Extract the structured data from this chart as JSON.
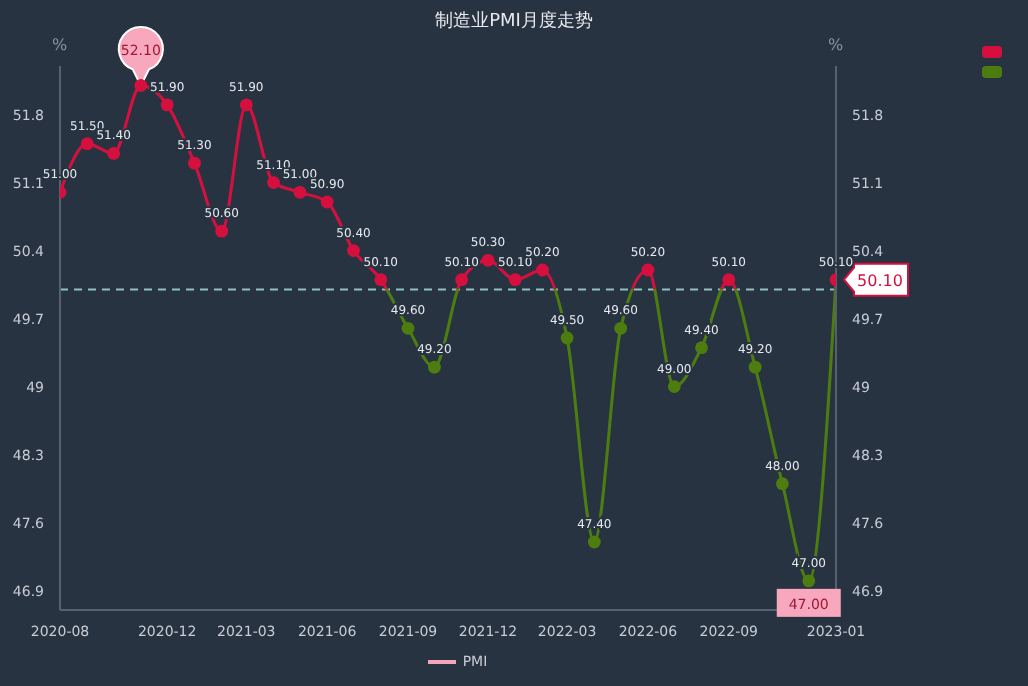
{
  "chart_data": {
    "type": "line",
    "title": "制造业PMI月度走势",
    "ylabel": "%",
    "y2label": "%",
    "x": [
      "2020-08",
      "2020-09",
      "2020-10",
      "2020-11",
      "2020-12",
      "2021-01",
      "2021-02",
      "2021-03",
      "2021-04",
      "2021-05",
      "2021-06",
      "2021-07",
      "2021-08",
      "2021-09",
      "2021-10",
      "2021-11",
      "2021-12",
      "2022-01",
      "2022-02",
      "2022-03",
      "2022-04",
      "2022-05",
      "2022-06",
      "2022-07",
      "2022-08",
      "2022-09",
      "2022-10",
      "2022-11",
      "2022-12",
      "2023-01"
    ],
    "series": [
      {
        "name": "PMI",
        "color": "#f4a6b8",
        "values": [
          51.0,
          51.5,
          51.4,
          52.1,
          51.9,
          51.3,
          50.6,
          51.9,
          51.1,
          51.0,
          50.9,
          50.4,
          50.1,
          49.6,
          49.2,
          50.1,
          50.3,
          50.1,
          50.2,
          49.5,
          47.4,
          49.6,
          50.2,
          49.0,
          49.4,
          50.1,
          49.2,
          48.0,
          47.0,
          50.1
        ],
        "colors": [
          "#d6103e",
          "#d6103e",
          "#d6103e",
          "#d6103e",
          "#d6103e",
          "#d6103e",
          "#d6103e",
          "#d6103e",
          "#d6103e",
          "#d6103e",
          "#d6103e",
          "#d6103e",
          "#d6103e",
          "#4e7d0f",
          "#4e7d0f",
          "#d6103e",
          "#d6103e",
          "#d6103e",
          "#d6103e",
          "#4e7d0f",
          "#4e7d0f",
          "#4e7d0f",
          "#d6103e",
          "#4e7d0f",
          "#4e7d0f",
          "#d6103e",
          "#4e7d0f",
          "#4e7d0f",
          "#4e7d0f",
          "#d6103e"
        ],
        "value_labels": [
          "51.00",
          "51.50",
          "51.40",
          null,
          "51.90",
          "51.30",
          "50.60",
          "51.90",
          "51.10",
          "51.00",
          "50.90",
          "50.40",
          "50.10",
          "49.60",
          "49.20",
          "50.10",
          "50.30",
          "50.10",
          "50.20",
          "49.50",
          "47.40",
          "49.60",
          "50.20",
          "49.00",
          "49.40",
          "50.10",
          "49.20",
          "48.00",
          "47.00",
          "50.10"
        ]
      }
    ],
    "xlim": [
      "2020-08",
      "2023-01"
    ],
    "xticks": [
      "2020-08",
      "2020-12",
      "2021-03",
      "2021-06",
      "2021-09",
      "2021-12",
      "2022-03",
      "2022-06",
      "2022-09",
      "2023-01"
    ],
    "ylim": [
      46.7,
      52.3
    ],
    "yticks": [
      46.9,
      47.6,
      48.3,
      49,
      49.7,
      50.4,
      51.1,
      51.8
    ],
    "y2lim": [
      46.7,
      52.3
    ],
    "y2ticks": [
      46.9,
      47.6,
      48.3,
      49,
      49.7,
      50.4,
      51.1,
      51.8
    ],
    "ref_lines": [
      {
        "axis": "y",
        "value": 50,
        "color": "#8fc1c0",
        "line_style": "dashed"
      }
    ],
    "annotations": [
      {
        "text": "52.10",
        "x": "2020-11",
        "y": 52.1
      },
      {
        "text": "47.00",
        "x": "2022-12",
        "y": 47.0
      },
      {
        "text": "50.10",
        "x": "2023-01",
        "y": 50.1
      }
    ],
    "legend": "bottom",
    "marker": "circle",
    "line_style": "solid",
    "grid": false
  }
}
